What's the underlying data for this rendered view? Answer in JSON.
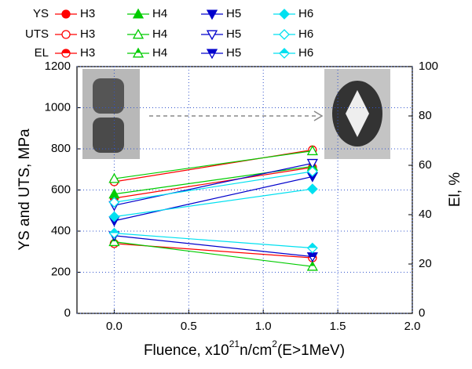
{
  "chart_data": {
    "type": "line",
    "x": [
      0,
      1.33
    ],
    "xlim": [
      -0.25,
      2.0
    ],
    "xticks": [
      {
        "value": 0,
        "label": "0.0"
      },
      {
        "value": 0.5,
        "label": "0.5"
      },
      {
        "value": 1,
        "label": "1.0"
      },
      {
        "value": 1.5,
        "label": "1.5"
      },
      {
        "value": 2,
        "label": "2.0"
      }
    ],
    "ylim": [
      0,
      1200
    ],
    "yticks": [
      0,
      200,
      400,
      600,
      800,
      1000,
      1200
    ],
    "y2lim": [
      0,
      100
    ],
    "y2ticks": [
      0,
      20,
      40,
      60,
      80,
      100
    ],
    "grid": true,
    "ylabel": "YS and UTS, MPa",
    "y2label": "El, %",
    "xlabel": [
      "Fluence, x10",
      "21",
      "n/cm",
      "2",
      "(E>1MeV)"
    ],
    "series_groups": [
      {
        "name": "YS",
        "fill": "full",
        "axis": "y",
        "series": [
          {
            "name": "H3",
            "color": "#ff0000",
            "marker": "circle",
            "values": [
              560,
              710
            ]
          },
          {
            "name": "H4",
            "color": "#00cc00",
            "marker": "triangle-up",
            "values": [
              580,
              715
            ]
          },
          {
            "name": "H5",
            "color": "#0000cc",
            "marker": "triangle-down",
            "values": [
              450,
              665
            ]
          },
          {
            "name": "H6",
            "color": "#00e0f0",
            "marker": "diamond",
            "values": [
              470,
              605
            ]
          }
        ]
      },
      {
        "name": "UTS",
        "fill": "open",
        "axis": "y",
        "series": [
          {
            "name": "H3",
            "color": "#ff0000",
            "marker": "circle",
            "values": [
              640,
              795
            ]
          },
          {
            "name": "H4",
            "color": "#00cc00",
            "marker": "triangle-up",
            "values": [
              655,
              790
            ]
          },
          {
            "name": "H5",
            "color": "#0000cc",
            "marker": "triangle-down",
            "values": [
              525,
              730
            ]
          },
          {
            "name": "H6",
            "color": "#00e0f0",
            "marker": "diamond",
            "values": [
              540,
              690
            ]
          }
        ]
      },
      {
        "name": "EL",
        "fill": "half",
        "axis": "y2",
        "series": [
          {
            "name": "H3",
            "color": "#ff0000",
            "marker": "circle",
            "values": [
              28.3,
              22.5
            ]
          },
          {
            "name": "H4",
            "color": "#00cc00",
            "marker": "triangle-up",
            "values": [
              29,
              19
            ]
          },
          {
            "name": "H5",
            "color": "#0000cc",
            "marker": "triangle-down",
            "values": [
              31.5,
              23
            ]
          },
          {
            "name": "H6",
            "color": "#00e0f0",
            "marker": "diamond",
            "values": [
              32.5,
              26.5
            ]
          }
        ]
      }
    ]
  }
}
